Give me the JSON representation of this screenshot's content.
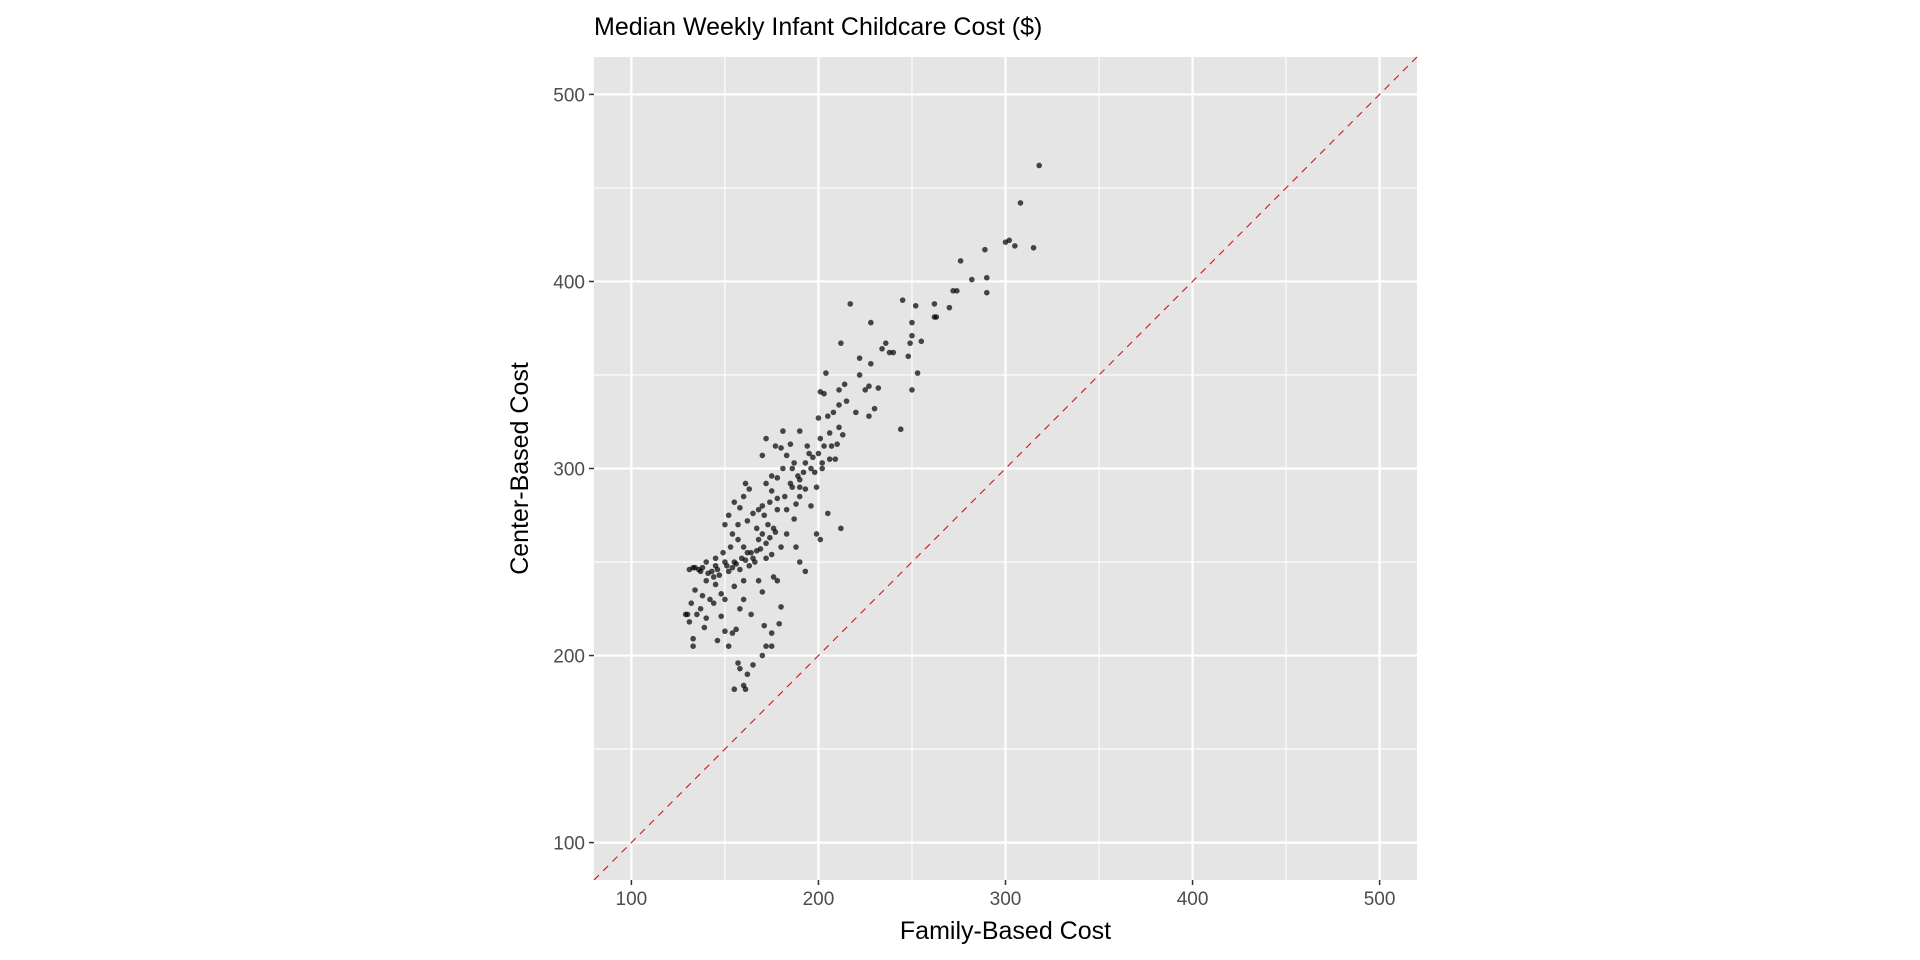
{
  "chart_data": {
    "type": "scatter",
    "title": "Median Weekly Infant Childcare Cost ($)",
    "xlabel": "Family-Based Cost",
    "ylabel": "Center-Based Cost",
    "xlim": [
      80,
      520
    ],
    "ylim": [
      80,
      520
    ],
    "x_ticks": [
      100,
      200,
      300,
      400,
      500
    ],
    "y_ticks": [
      100,
      200,
      300,
      400,
      500
    ],
    "x_tick_labels": [
      "100",
      "200",
      "300",
      "400",
      "500"
    ],
    "y_tick_labels": [
      "100",
      "200",
      "300",
      "400",
      "500"
    ],
    "grid": true,
    "reference_line": {
      "type": "y=x",
      "color": "#ff0000",
      "style": "dashed"
    },
    "point_color": "#000000",
    "point_opacity": 0.7,
    "panel_background": "#e5e5e5",
    "points": [
      [
        318,
        462
      ],
      [
        308,
        442
      ],
      [
        300,
        421
      ],
      [
        302,
        422
      ],
      [
        305,
        419
      ],
      [
        315,
        418
      ],
      [
        289,
        417
      ],
      [
        290,
        402
      ],
      [
        290,
        394
      ],
      [
        276,
        411
      ],
      [
        282,
        401
      ],
      [
        272,
        395
      ],
      [
        274,
        395
      ],
      [
        270,
        386
      ],
      [
        262,
        388
      ],
      [
        262,
        381
      ],
      [
        263,
        381
      ],
      [
        252,
        387
      ],
      [
        245,
        390
      ],
      [
        250,
        378
      ],
      [
        250,
        371
      ],
      [
        255,
        368
      ],
      [
        249,
        367
      ],
      [
        248,
        360
      ],
      [
        250,
        342
      ],
      [
        253,
        351
      ],
      [
        244,
        321
      ],
      [
        238,
        362
      ],
      [
        236,
        367
      ],
      [
        234,
        364
      ],
      [
        240,
        362
      ],
      [
        228,
        378
      ],
      [
        217,
        388
      ],
      [
        222,
        359
      ],
      [
        228,
        356
      ],
      [
        232,
        343
      ],
      [
        227,
        344
      ],
      [
        225,
        342
      ],
      [
        230,
        332
      ],
      [
        227,
        328
      ],
      [
        222,
        350
      ],
      [
        220,
        330
      ],
      [
        215,
        336
      ],
      [
        212,
        367
      ],
      [
        214,
        345
      ],
      [
        211,
        342
      ],
      [
        204,
        351
      ],
      [
        211,
        334
      ],
      [
        201,
        341
      ],
      [
        203,
        340
      ],
      [
        205,
        328
      ],
      [
        200,
        327
      ],
      [
        208,
        330
      ],
      [
        206,
        319
      ],
      [
        211,
        322
      ],
      [
        213,
        318
      ],
      [
        210,
        313
      ],
      [
        207,
        312
      ],
      [
        209,
        305
      ],
      [
        203,
        312
      ],
      [
        201,
        316
      ],
      [
        200,
        308
      ],
      [
        197,
        306
      ],
      [
        195,
        308
      ],
      [
        193,
        303
      ],
      [
        196,
        300
      ],
      [
        192,
        298
      ],
      [
        189,
        296
      ],
      [
        190,
        294
      ],
      [
        187,
        303
      ],
      [
        185,
        313
      ],
      [
        183,
        307
      ],
      [
        181,
        320
      ],
      [
        180,
        311
      ],
      [
        177,
        312
      ],
      [
        172,
        316
      ],
      [
        170,
        307
      ],
      [
        175,
        296
      ],
      [
        178,
        295
      ],
      [
        181,
        300
      ],
      [
        186,
        290
      ],
      [
        190,
        285
      ],
      [
        188,
        281
      ],
      [
        185,
        292
      ],
      [
        182,
        285
      ],
      [
        178,
        284
      ],
      [
        175,
        288
      ],
      [
        172,
        292
      ],
      [
        170,
        280
      ],
      [
        168,
        278
      ],
      [
        165,
        276
      ],
      [
        163,
        289
      ],
      [
        161,
        292
      ],
      [
        160,
        285
      ],
      [
        158,
        279
      ],
      [
        155,
        282
      ],
      [
        152,
        275
      ],
      [
        150,
        270
      ],
      [
        154,
        265
      ],
      [
        157,
        262
      ],
      [
        160,
        258
      ],
      [
        162,
        255
      ],
      [
        165,
        252
      ],
      [
        168,
        262
      ],
      [
        170,
        265
      ],
      [
        173,
        270
      ],
      [
        176,
        268
      ],
      [
        180,
        258
      ],
      [
        183,
        265
      ],
      [
        187,
        273
      ],
      [
        190,
        290
      ],
      [
        193,
        289
      ],
      [
        196,
        280
      ],
      [
        199,
        265
      ],
      [
        201,
        262
      ],
      [
        205,
        276
      ],
      [
        212,
        268
      ],
      [
        199,
        290
      ],
      [
        202,
        300
      ],
      [
        193,
        245
      ],
      [
        190,
        250
      ],
      [
        188,
        258
      ],
      [
        178,
        240
      ],
      [
        176,
        242
      ],
      [
        180,
        226
      ],
      [
        179,
        217
      ],
      [
        175,
        212
      ],
      [
        171,
        216
      ],
      [
        172,
        205
      ],
      [
        175,
        205
      ],
      [
        170,
        200
      ],
      [
        165,
        195
      ],
      [
        162,
        190
      ],
      [
        160,
        184
      ],
      [
        161,
        182
      ],
      [
        155,
        182
      ],
      [
        157,
        196
      ],
      [
        158,
        193
      ],
      [
        152,
        205
      ],
      [
        154,
        212
      ],
      [
        156,
        214
      ],
      [
        150,
        213
      ],
      [
        148,
        221
      ],
      [
        146,
        208
      ],
      [
        140,
        220
      ],
      [
        144,
        228
      ],
      [
        138,
        232
      ],
      [
        134,
        235
      ],
      [
        132,
        228
      ],
      [
        130,
        222
      ],
      [
        129,
        222
      ],
      [
        131,
        218
      ],
      [
        133,
        209
      ],
      [
        133,
        205
      ],
      [
        135,
        222
      ],
      [
        137,
        225
      ],
      [
        140,
        240
      ],
      [
        143,
        245
      ],
      [
        145,
        248
      ],
      [
        147,
        243
      ],
      [
        150,
        250
      ],
      [
        152,
        245
      ],
      [
        155,
        250
      ],
      [
        158,
        246
      ],
      [
        160,
        240
      ],
      [
        163,
        248
      ],
      [
        166,
        250
      ],
      [
        168,
        240
      ],
      [
        170,
        234
      ],
      [
        172,
        252
      ],
      [
        175,
        254
      ],
      [
        164,
        222
      ],
      [
        160,
        230
      ],
      [
        158,
        225
      ],
      [
        155,
        237
      ],
      [
        150,
        230
      ],
      [
        148,
        233
      ],
      [
        145,
        238
      ],
      [
        142,
        230
      ],
      [
        139,
        215
      ],
      [
        137,
        245
      ],
      [
        134,
        247
      ],
      [
        131,
        246
      ],
      [
        133,
        247
      ],
      [
        140,
        250
      ],
      [
        145,
        252
      ],
      [
        149,
        255
      ],
      [
        153,
        258
      ],
      [
        157,
        270
      ],
      [
        162,
        272
      ],
      [
        167,
        268
      ],
      [
        171,
        275
      ],
      [
        174,
        282
      ],
      [
        178,
        278
      ],
      [
        183,
        278
      ],
      [
        186,
        300
      ],
      [
        190,
        320
      ],
      [
        194,
        312
      ],
      [
        198,
        298
      ],
      [
        202,
        303
      ],
      [
        206,
        305
      ],
      [
        136,
        246
      ],
      [
        138,
        247
      ],
      [
        141,
        244
      ],
      [
        144,
        242
      ],
      [
        146,
        246
      ],
      [
        151,
        248
      ],
      [
        154,
        247
      ],
      [
        156,
        249
      ],
      [
        159,
        252
      ],
      [
        161,
        251
      ],
      [
        164,
        255
      ],
      [
        167,
        256
      ],
      [
        169,
        257
      ],
      [
        172,
        260
      ],
      [
        174,
        263
      ],
      [
        177,
        266
      ]
    ]
  }
}
